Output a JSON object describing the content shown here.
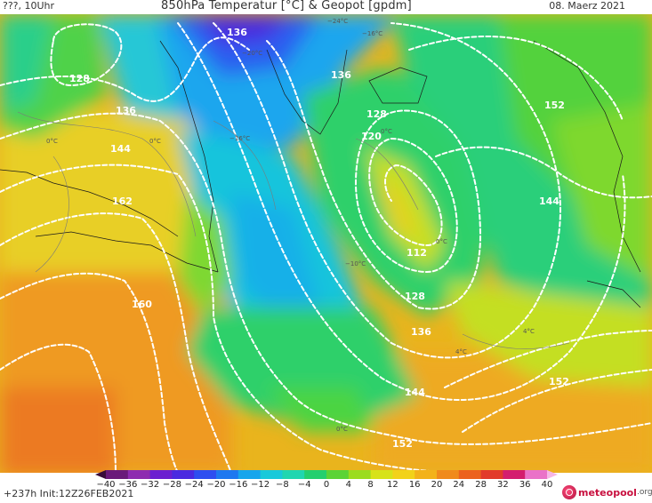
{
  "header": {
    "left_text": "???, 10Uhr",
    "title": "850hPa Temperatur [°C] & Geopot [gpdm]",
    "date": "08. Maerz 2021"
  },
  "footer": {
    "run_text": "+237h Init:12Z26FEB2021",
    "brand": "meteopool",
    "brand_tld": ".org"
  },
  "legend": {
    "ticks": [
      "−40",
      "−36",
      "−32",
      "−28",
      "−24",
      "−20",
      "−16",
      "−12",
      "−8",
      "−4",
      "0",
      "4",
      "8",
      "12",
      "16",
      "20",
      "24",
      "28",
      "32",
      "36",
      "40"
    ],
    "colors": [
      "#3a0d3a",
      "#6a1a7a",
      "#8e2cb0",
      "#6b1fd0",
      "#4a2ae0",
      "#2e4ef0",
      "#1e78f0",
      "#17a5ec",
      "#19c9da",
      "#20d6b0",
      "#24cf6e",
      "#5bd336",
      "#9bdc1e",
      "#d7e21a",
      "#f2d21a",
      "#f3b21a",
      "#f08a1c",
      "#ec621e",
      "#e23a2a",
      "#d41d6e",
      "#ea72c8",
      "#f6b6e6"
    ]
  },
  "map": {
    "geopotential_labels": [
      "136",
      "128",
      "136",
      "144",
      "162",
      "160",
      "136",
      "128",
      "120",
      "112",
      "128",
      "136",
      "144",
      "152",
      "144",
      "152",
      "152"
    ],
    "temperature_labels": [
      "0°C",
      "0°C",
      "−16°C",
      "−10°C",
      "0°C",
      "0°C",
      "4°C",
      "4°C",
      "0°C",
      "−24°C",
      "−16°C",
      "−20°C"
    ]
  }
}
